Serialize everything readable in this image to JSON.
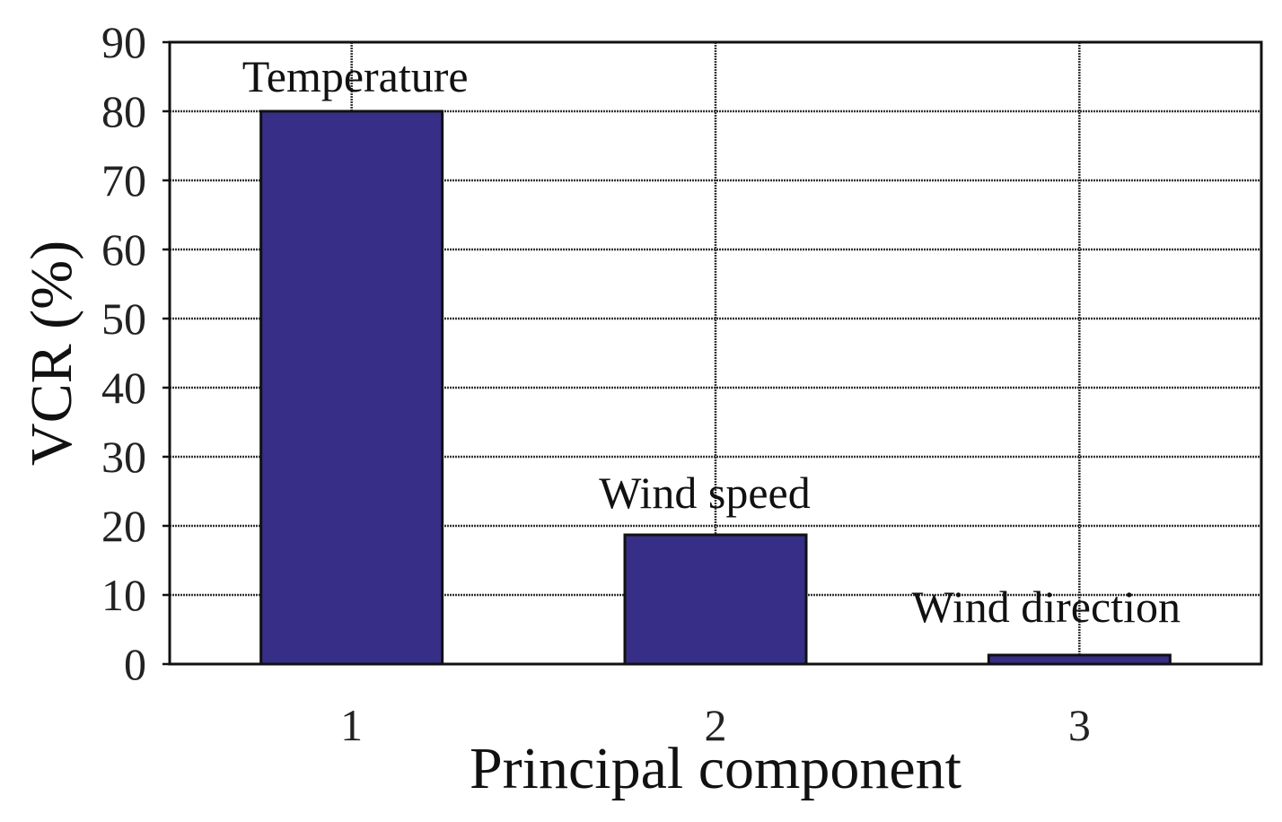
{
  "chart_data": {
    "type": "bar",
    "categories": [
      "1",
      "2",
      "3"
    ],
    "values": [
      80,
      18.7,
      1.3
    ],
    "bar_labels": [
      "Temperature",
      "Wind speed",
      "Wind direction"
    ],
    "xlabel": "Principal component",
    "ylabel": "VCR (%)",
    "ylim": [
      0,
      90
    ],
    "yticks": [
      0,
      10,
      20,
      30,
      40,
      50,
      60,
      70,
      80,
      90
    ],
    "grid": true,
    "colors": {
      "bar_fill": "#372E87",
      "bar_stroke": "#111111",
      "grid": "#333333",
      "frame": "#111111"
    }
  }
}
